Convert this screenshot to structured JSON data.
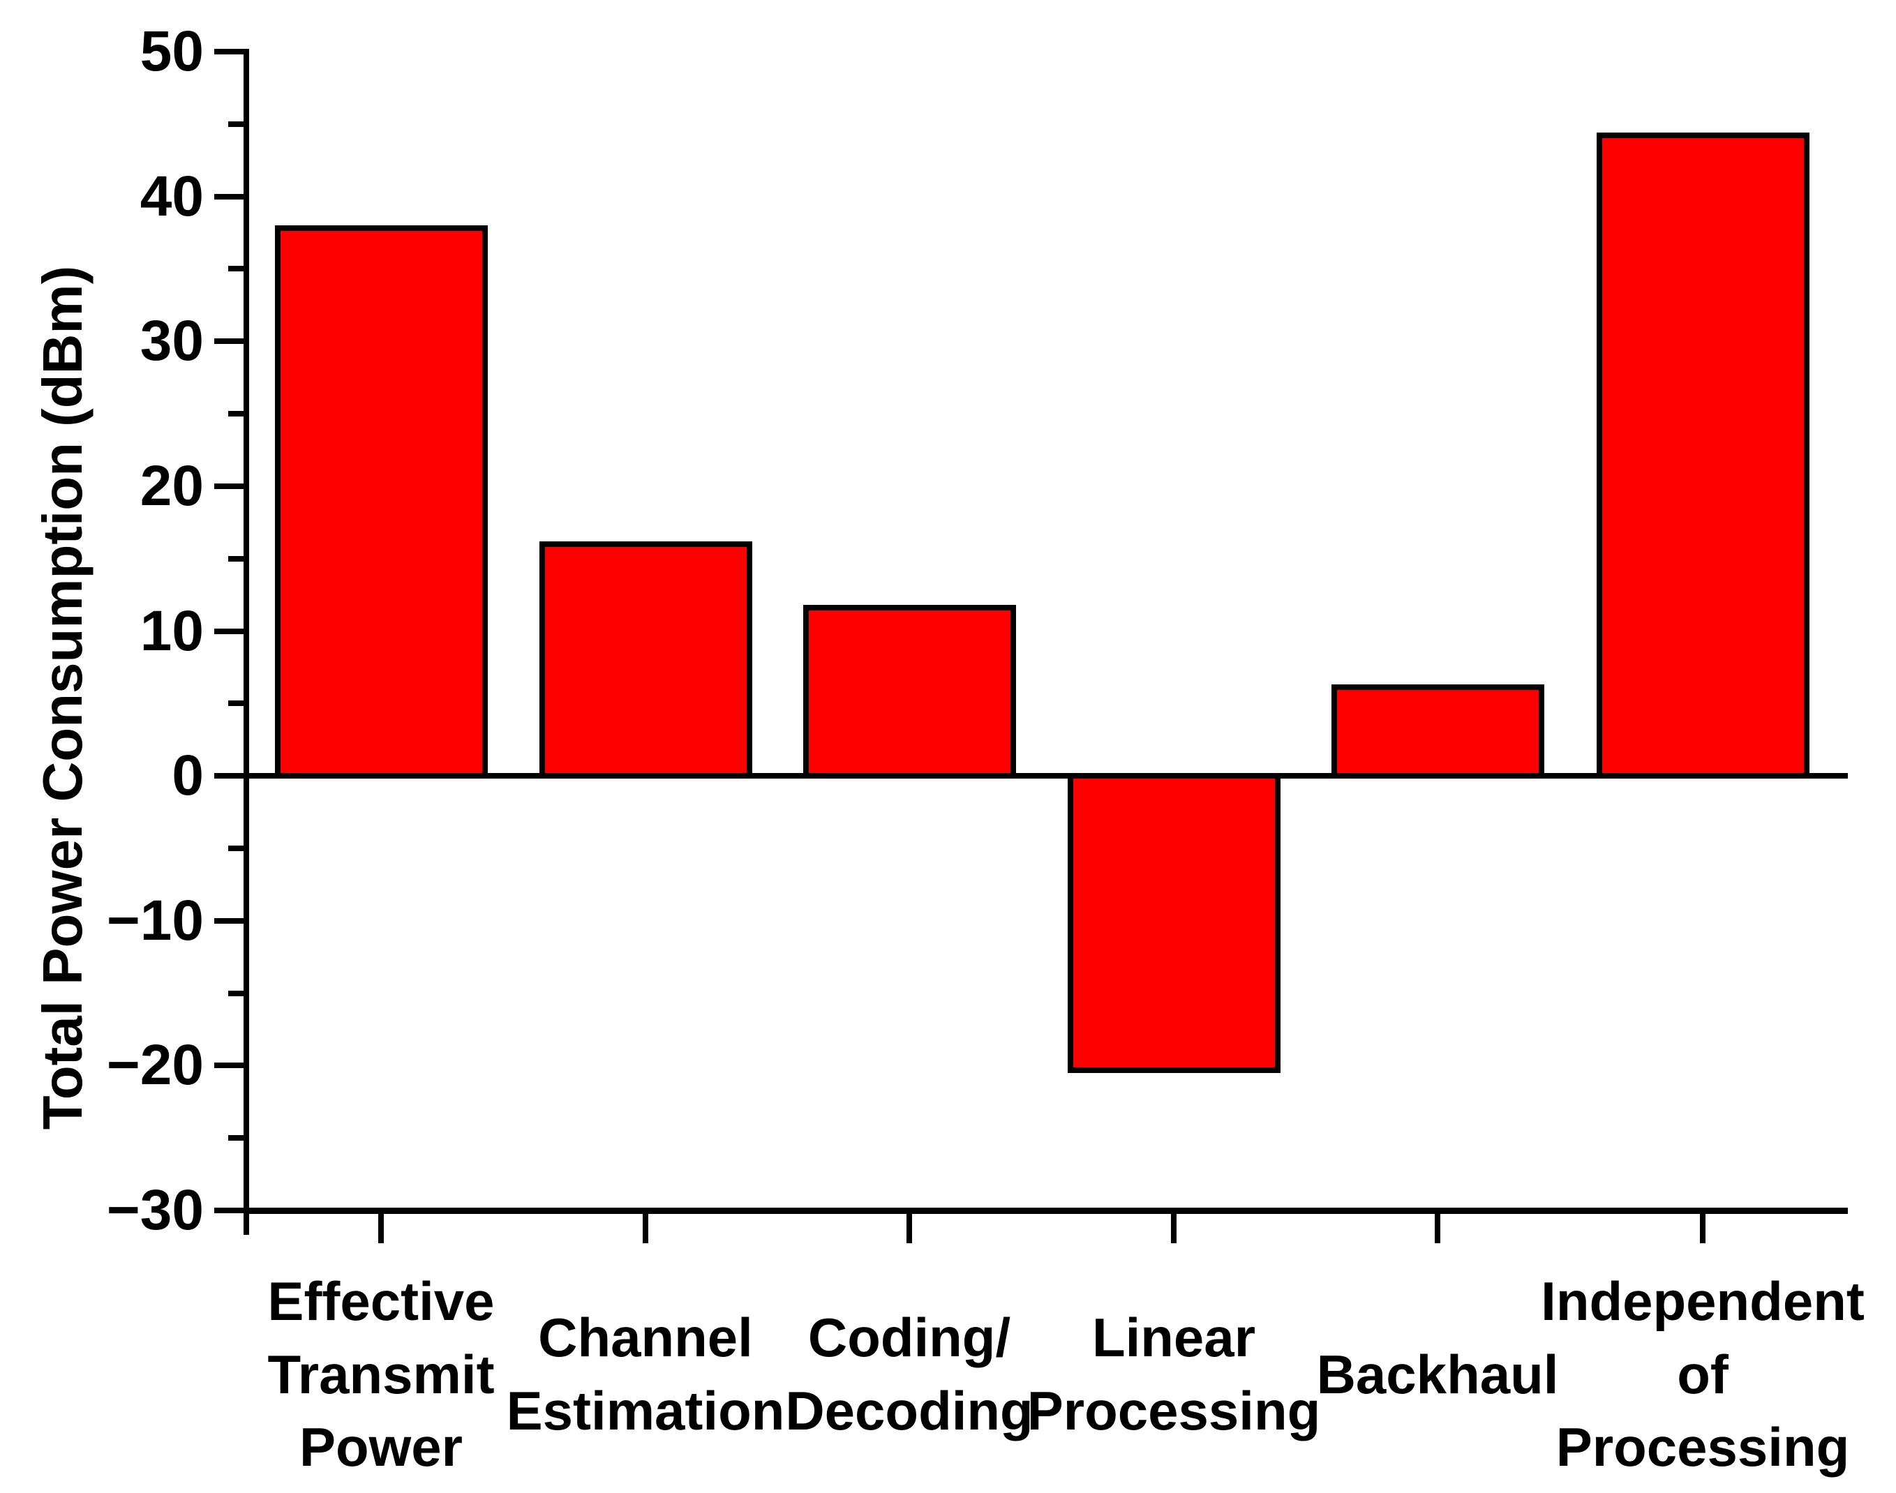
{
  "chart_data": {
    "type": "bar",
    "title": "",
    "xlabel": "",
    "ylabel": "Total Power Consumption (dBm)",
    "categories": [
      "Effective Transmit Power",
      "Channel Estimation",
      "Coding/Decoding",
      "Linear Processing",
      "Backhaul",
      "Independent of Processing"
    ],
    "categories_display": [
      "Effective\nTransmit\nPower",
      "Channel\nEstimation",
      "Coding/\nDecoding",
      "Linear\nProcessing",
      "Backhaul",
      "Independent\nof\nProcessing"
    ],
    "values": [
      37.8,
      16.0,
      11.6,
      -20.3,
      6.1,
      44.2
    ],
    "ylim": [
      -30,
      50
    ],
    "yticks_major": [
      50,
      40,
      30,
      20,
      10,
      0,
      -10,
      -20,
      -30
    ],
    "ytick_labels": [
      "50",
      "40",
      "30",
      "20",
      "10",
      "0",
      "−10",
      "−20",
      "−30"
    ],
    "yticks_minor": [
      45,
      35,
      25,
      15,
      5,
      -5,
      -15,
      -25
    ],
    "grid": false,
    "legend": null,
    "bar_color": "#FF0000",
    "bar_border_color": "#000000",
    "axis_color": "#000000"
  }
}
